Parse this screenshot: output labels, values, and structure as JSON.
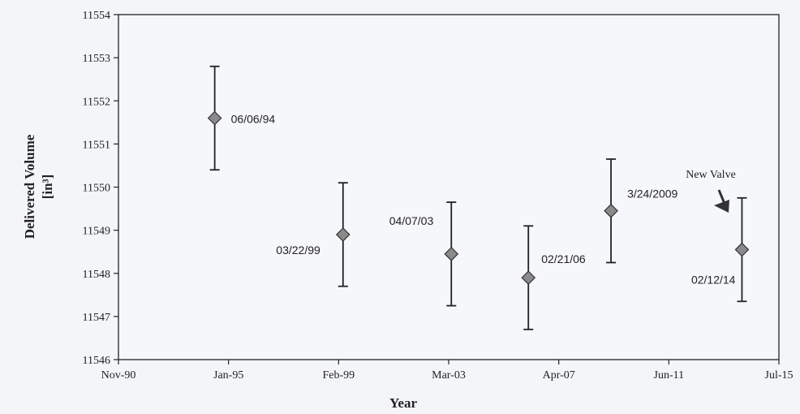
{
  "chart_data": {
    "type": "scatter",
    "title": "",
    "xlabel": "Year",
    "ylabel": "Delivered Volume",
    "ylabel_unit": "[in³]",
    "xlim": [
      "1990-11-01",
      "2015-07-01"
    ],
    "ylim": [
      11546,
      11554
    ],
    "x_ticks": [
      "Nov-90",
      "Jan-95",
      "Feb-99",
      "Mar-03",
      "Apr-07",
      "Jun-11",
      "Jul-15"
    ],
    "y_ticks": [
      "11546",
      "11547",
      "11548",
      "11549",
      "11550",
      "11551",
      "11552",
      "11553",
      "11554"
    ],
    "grid": false,
    "legend": "none",
    "series": [
      {
        "marker": "diamond",
        "marker_color": "#8a8a8a",
        "error_bars": true,
        "points": [
          {
            "x": "1994-06-06",
            "y": 11551.6,
            "err": 1.2,
            "label": "06/06/94"
          },
          {
            "x": "1999-03-22",
            "y": 11548.9,
            "err": 1.2,
            "label": "03/22/99"
          },
          {
            "x": "2003-04-07",
            "y": 11548.45,
            "err": 1.2,
            "label": "04/07/03"
          },
          {
            "x": "2006-02-21",
            "y": 11547.9,
            "err": 1.2,
            "label": "02/21/06"
          },
          {
            "x": "2009-03-24",
            "y": 11549.45,
            "err": 1.2,
            "label": "3/24/2009"
          },
          {
            "x": "2014-02-12",
            "y": 11548.55,
            "err": 1.2,
            "label": "02/12/14"
          }
        ]
      }
    ],
    "annotations": [
      {
        "text": "New Valve",
        "points_to": "2014-02-12"
      }
    ]
  }
}
